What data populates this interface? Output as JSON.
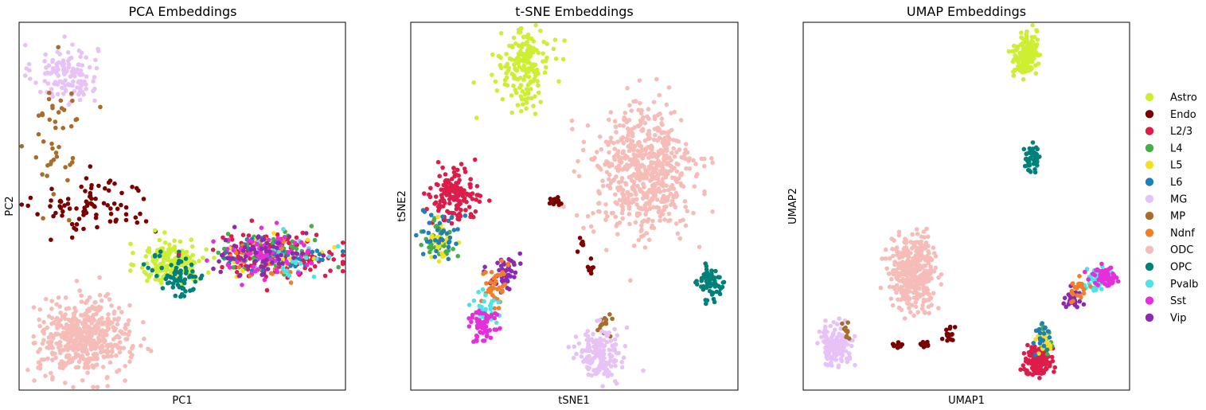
{
  "legend": {
    "entries": [
      {
        "name": "Astro",
        "color": "#cdee33"
      },
      {
        "name": "Endo",
        "color": "#7b0000"
      },
      {
        "name": "L2/3",
        "color": "#dc1d4a"
      },
      {
        "name": "L4",
        "color": "#44b044"
      },
      {
        "name": "L5",
        "color": "#f6df20"
      },
      {
        "name": "L6",
        "color": "#1f7fb8"
      },
      {
        "name": "MG",
        "color": "#e6c2f7"
      },
      {
        "name": "MP",
        "color": "#a86d2c"
      },
      {
        "name": "Ndnf",
        "color": "#f07f2a"
      },
      {
        "name": "ODC",
        "color": "#f5bcb8"
      },
      {
        "name": "OPC",
        "color": "#00807a"
      },
      {
        "name": "Pvalb",
        "color": "#4ce3e9"
      },
      {
        "name": "Sst",
        "color": "#e72fd9"
      },
      {
        "name": "Vip",
        "color": "#8c29b0"
      }
    ]
  },
  "chart_data": [
    {
      "type": "scatter",
      "title": "PCA Embeddings",
      "xlabel": "PC1",
      "ylabel": "PC2",
      "xlim": [
        0,
        100
      ],
      "ylim": [
        0,
        100
      ],
      "ticks": false,
      "clusters": [
        {
          "label": "MG",
          "x": 14,
          "y": 86,
          "spread": [
            5,
            4
          ],
          "points": 130
        },
        {
          "label": "MP",
          "x": 12,
          "y": 70,
          "spread": [
            4,
            9
          ],
          "points": 45
        },
        {
          "label": "Endo",
          "x": 23,
          "y": 50,
          "spread": [
            9,
            4
          ],
          "points": 85
        },
        {
          "label": "Astro",
          "x": 47,
          "y": 35,
          "spread": [
            5,
            3
          ],
          "points": 160
        },
        {
          "label": "OPC",
          "x": 49,
          "y": 31,
          "spread": [
            4,
            3
          ],
          "points": 70
        },
        {
          "label": "L2/3",
          "x": 78,
          "y": 37,
          "spread": [
            10,
            3
          ],
          "points": 140
        },
        {
          "label": "L4",
          "x": 77,
          "y": 37,
          "spread": [
            9,
            3
          ],
          "points": 45
        },
        {
          "label": "L5",
          "x": 79,
          "y": 37,
          "spread": [
            8,
            2.5
          ],
          "points": 35
        },
        {
          "label": "L6",
          "x": 79,
          "y": 37,
          "spread": [
            8,
            2.5
          ],
          "points": 40
        },
        {
          "label": "Ndnf",
          "x": 75,
          "y": 35,
          "spread": [
            7,
            3
          ],
          "points": 30
        },
        {
          "label": "Pvalb",
          "x": 82,
          "y": 36,
          "spread": [
            7,
            3
          ],
          "points": 30
        },
        {
          "label": "Sst",
          "x": 76,
          "y": 37,
          "spread": [
            8,
            3
          ],
          "points": 70
        },
        {
          "label": "Vip",
          "x": 75,
          "y": 37,
          "spread": [
            7,
            3
          ],
          "points": 60
        },
        {
          "label": "ODC",
          "x": 20,
          "y": 14,
          "spread": [
            7,
            5
          ],
          "points": 500
        }
      ]
    },
    {
      "type": "scatter",
      "title": "t-SNE Embeddings",
      "xlabel": "tSNE1",
      "ylabel": "tSNE2",
      "xlim": [
        0,
        100
      ],
      "ylim": [
        0,
        100
      ],
      "ticks": false,
      "clusters": [
        {
          "label": "Astro",
          "x": 35,
          "y": 88,
          "spread": [
            3.8,
            5
          ],
          "points": 180
        },
        {
          "label": "ODC",
          "x": 71,
          "y": 59,
          "spread": [
            8,
            9
          ],
          "points": 600
        },
        {
          "label": "OPC",
          "x": 92,
          "y": 29,
          "spread": [
            2,
            2.5
          ],
          "points": 70
        },
        {
          "label": "L2/3",
          "x": 13,
          "y": 53,
          "spread": [
            3.5,
            3.5
          ],
          "points": 150
        },
        {
          "label": "L4",
          "x": 8.5,
          "y": 41,
          "spread": [
            2.5,
            3
          ],
          "points": 40
        },
        {
          "label": "L5",
          "x": 9.5,
          "y": 41,
          "spread": [
            2,
            2.5
          ],
          "points": 25
        },
        {
          "label": "L6",
          "x": 9.5,
          "y": 42,
          "spread": [
            3,
            3.5
          ],
          "points": 35
        },
        {
          "label": "Vip",
          "x": 29,
          "y": 32,
          "spread": [
            2,
            2.5
          ],
          "points": 50
        },
        {
          "label": "Ndnf",
          "x": 26,
          "y": 29,
          "spread": [
            2,
            3
          ],
          "points": 40
        },
        {
          "label": "Pvalb",
          "x": 22,
          "y": 22,
          "spread": [
            2,
            2.5
          ],
          "points": 35
        },
        {
          "label": "Sst",
          "x": 22,
          "y": 18,
          "spread": [
            2,
            2.5
          ],
          "points": 60
        },
        {
          "label": "Endo",
          "x": 44,
          "y": 51,
          "spread": [
            1,
            1
          ],
          "points": 20
        },
        {
          "label": "Endo",
          "x": 52,
          "y": 40,
          "spread": [
            0.6,
            0.8
          ],
          "points": 8
        },
        {
          "label": "Endo",
          "x": 55,
          "y": 33,
          "spread": [
            0.5,
            1
          ],
          "points": 8
        },
        {
          "label": "MP",
          "x": 59,
          "y": 18,
          "spread": [
            1.5,
            2
          ],
          "points": 14
        },
        {
          "label": "MG",
          "x": 58,
          "y": 10,
          "spread": [
            3.5,
            3.5
          ],
          "points": 150
        }
      ]
    },
    {
      "type": "scatter",
      "title": "UMAP Embeddings",
      "xlabel": "UMAP1",
      "ylabel": "UMAP2",
      "xlim": [
        0,
        100
      ],
      "ylim": [
        0,
        100
      ],
      "ticks": false,
      "clusters": [
        {
          "label": "Astro",
          "x": 68,
          "y": 91,
          "spread": [
            1.8,
            3
          ],
          "points": 150
        },
        {
          "label": "OPC",
          "x": 70,
          "y": 63,
          "spread": [
            1.2,
            1.8
          ],
          "points": 50
        },
        {
          "label": "ODC",
          "x": 34,
          "y": 32,
          "spread": [
            3.5,
            4.5
          ],
          "points": 400
        },
        {
          "label": "Pvalb",
          "x": 90,
          "y": 30,
          "spread": [
            2,
            1.6
          ],
          "points": 40
        },
        {
          "label": "Sst",
          "x": 92,
          "y": 31,
          "spread": [
            2,
            1.3
          ],
          "points": 60
        },
        {
          "label": "Vip",
          "x": 83,
          "y": 25,
          "spread": [
            1.4,
            1.2
          ],
          "points": 40
        },
        {
          "label": "Ndnf",
          "x": 84,
          "y": 28,
          "spread": [
            1.5,
            1.5
          ],
          "points": 25
        },
        {
          "label": "L2/3",
          "x": 72,
          "y": 8,
          "spread": [
            2,
            2
          ],
          "points": 140
        },
        {
          "label": "L4",
          "x": 74,
          "y": 15,
          "spread": [
            1.2,
            2
          ],
          "points": 30
        },
        {
          "label": "L5",
          "x": 74,
          "y": 14,
          "spread": [
            1.2,
            1.5
          ],
          "points": 20
        },
        {
          "label": "L6",
          "x": 73,
          "y": 14,
          "spread": [
            1.2,
            1.8
          ],
          "points": 20
        },
        {
          "label": "MG",
          "x": 10,
          "y": 12,
          "spread": [
            2.5,
            2.5
          ],
          "points": 150
        },
        {
          "label": "MP",
          "x": 13,
          "y": 16,
          "spread": [
            0.8,
            1.5
          ],
          "points": 10
        },
        {
          "label": "Endo",
          "x": 45,
          "y": 15,
          "spread": [
            1.2,
            1
          ],
          "points": 20
        },
        {
          "label": "Endo",
          "x": 29,
          "y": 12.5,
          "spread": [
            1,
            0.5
          ],
          "points": 10
        },
        {
          "label": "Endo",
          "x": 37,
          "y": 12.5,
          "spread": [
            1,
            0.5
          ],
          "points": 10
        }
      ]
    }
  ]
}
